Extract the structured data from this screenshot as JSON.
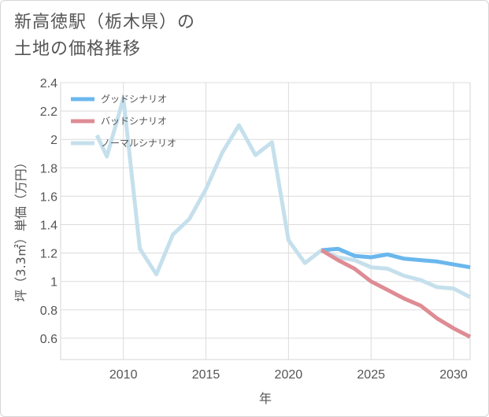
{
  "title": {
    "line1": "新高徳駅（栃木県）の",
    "line2": "土地の価格推移"
  },
  "chart_data": {
    "type": "line",
    "title": "新高徳駅（栃木県）の土地の価格推移",
    "xlabel": "年",
    "ylabel": "坪（3.3㎡）単価（万円）",
    "xlim": [
      2006.2,
      2031.0
    ],
    "ylim": [
      0.45,
      2.4
    ],
    "xticks": [
      2010,
      2015,
      2020,
      2025,
      2030
    ],
    "yticks": [
      0.6,
      0.8,
      1,
      1.2,
      1.4,
      1.6,
      1.8,
      2,
      2.2,
      2.4
    ],
    "ytick_labels": [
      "0.6",
      "0.8",
      "1",
      "1.2",
      "1.4",
      "1.6",
      "1.8",
      "2",
      "2.2",
      "2.4"
    ],
    "grid": true,
    "legend_position": "top-left",
    "series": [
      {
        "name": "ノーマルシナリオ",
        "color": "#c5e0ec",
        "x": [
          2008.4,
          2009,
          2010,
          2011,
          2012,
          2013,
          2014,
          2015,
          2016,
          2017,
          2018,
          2019,
          2020,
          2021,
          2022,
          2023,
          2024,
          2025,
          2026,
          2027,
          2028,
          2029,
          2030,
          2031
        ],
        "values": [
          2.03,
          1.88,
          2.29,
          1.23,
          1.05,
          1.33,
          1.44,
          1.65,
          1.91,
          2.1,
          1.89,
          1.98,
          1.29,
          1.13,
          1.22,
          1.17,
          1.15,
          1.1,
          1.09,
          1.04,
          1.01,
          0.96,
          0.95,
          0.89
        ]
      },
      {
        "name": "グッドシナリオ",
        "color": "#6ab7ee",
        "x": [
          2022,
          2023,
          2024,
          2025,
          2026,
          2027,
          2028,
          2029,
          2030,
          2031
        ],
        "values": [
          1.22,
          1.23,
          1.18,
          1.17,
          1.19,
          1.16,
          1.15,
          1.14,
          1.12,
          1.1
        ]
      },
      {
        "name": "バッドシナリオ",
        "color": "#de8c94",
        "x": [
          2022,
          2023,
          2024,
          2025,
          2026,
          2027,
          2028,
          2029,
          2030,
          2031
        ],
        "values": [
          1.22,
          1.15,
          1.09,
          1.0,
          0.94,
          0.88,
          0.83,
          0.74,
          0.67,
          0.61
        ]
      }
    ],
    "legend": [
      "グッドシナリオ",
      "バッドシナリオ",
      "ノーマルシナリオ"
    ]
  }
}
